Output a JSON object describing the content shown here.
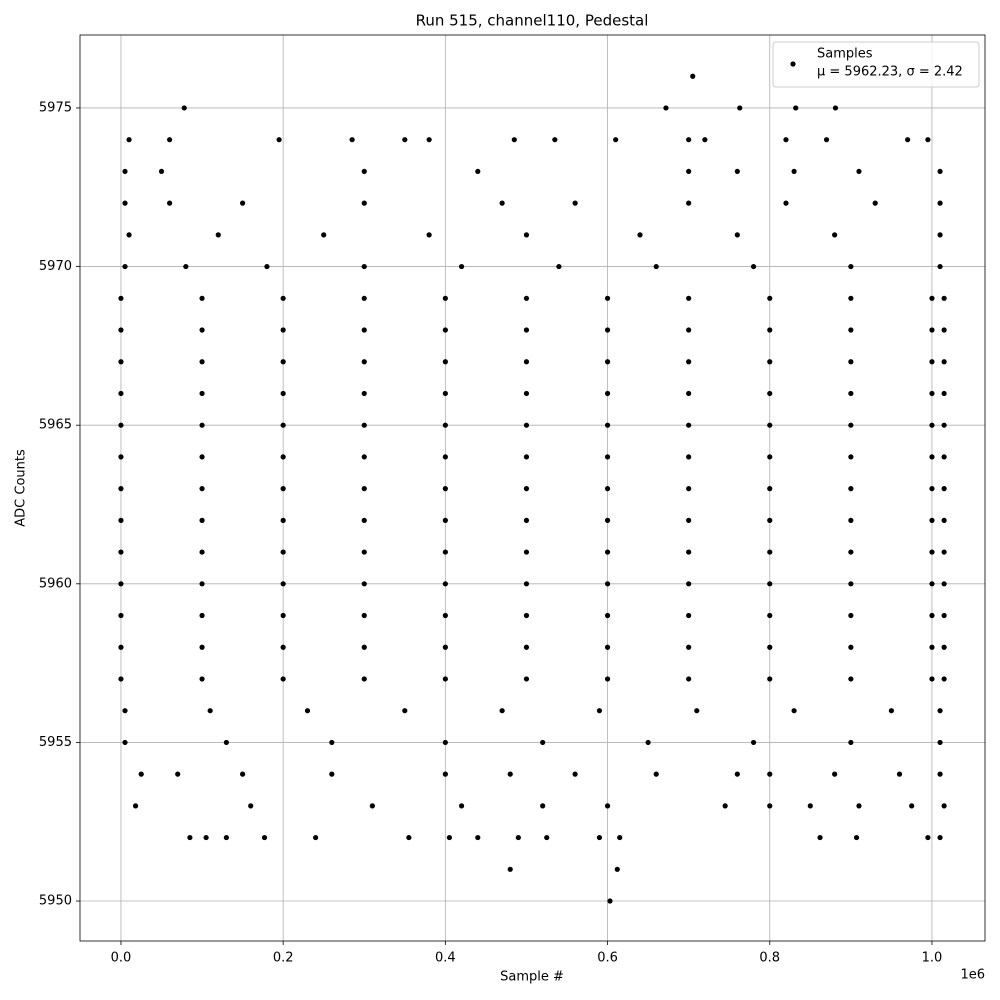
{
  "chart_data": {
    "type": "scatter",
    "title": "Run 515, channel110, Pedestal",
    "x_label": "Sample #",
    "y_label": "ADC Counts",
    "x_offset_label": "1e6",
    "xlim": [
      -50500,
      1065400
    ],
    "ylim": [
      5948.74,
      5977.3
    ],
    "xticks": [
      {
        "value": 0,
        "label": "0.0"
      },
      {
        "value": 200000,
        "label": "0.2"
      },
      {
        "value": 400000,
        "label": "0.4"
      },
      {
        "value": 600000,
        "label": "0.6"
      },
      {
        "value": 800000,
        "label": "0.8"
      },
      {
        "value": 1000000,
        "label": "1.0"
      }
    ],
    "yticks": [
      5950,
      5955,
      5960,
      5965,
      5970,
      5975
    ],
    "grid": true,
    "legend": "upper right",
    "stats_label": "μ = 5962.23, σ = 2.42",
    "series": [
      {
        "name": "Samples",
        "color": "#000000",
        "x": [
          0,
          100000,
          200000,
          300000,
          400000,
          500000,
          600000,
          700000,
          800000,
          900000,
          1000000,
          1015000,
          0,
          100000,
          200000,
          300000,
          400000,
          500000,
          600000,
          700000,
          800000,
          900000,
          1000000,
          1015000,
          0,
          100000,
          200000,
          300000,
          400000,
          500000,
          600000,
          700000,
          800000,
          900000,
          1000000,
          1015000,
          0,
          100000,
          200000,
          300000,
          400000,
          500000,
          600000,
          700000,
          800000,
          900000,
          1000000,
          1015000,
          0,
          100000,
          200000,
          300000,
          400000,
          500000,
          600000,
          700000,
          800000,
          900000,
          1000000,
          1015000,
          0,
          100000,
          200000,
          300000,
          400000,
          500000,
          600000,
          700000,
          800000,
          900000,
          1000000,
          1015000,
          0,
          100000,
          200000,
          300000,
          400000,
          500000,
          600000,
          700000,
          800000,
          900000,
          1000000,
          1015000,
          0,
          100000,
          200000,
          300000,
          400000,
          500000,
          600000,
          700000,
          800000,
          900000,
          1000000,
          1015000,
          0,
          100000,
          200000,
          300000,
          400000,
          500000,
          600000,
          700000,
          800000,
          900000,
          1000000,
          1015000,
          0,
          100000,
          200000,
          300000,
          400000,
          500000,
          600000,
          700000,
          800000,
          900000,
          1000000,
          1015000,
          0,
          100000,
          200000,
          300000,
          400000,
          500000,
          600000,
          700000,
          800000,
          900000,
          1000000,
          1015000,
          0,
          100000,
          200000,
          300000,
          400000,
          500000,
          600000,
          700000,
          800000,
          900000,
          1000000,
          1015000,
          0,
          100000,
          200000,
          300000,
          400000,
          500000,
          600000,
          700000,
          800000,
          900000,
          1000000,
          1015000,
          5000,
          80000,
          180000,
          300000,
          420000,
          540000,
          660000,
          780000,
          900000,
          1010000,
          10000,
          120000,
          250000,
          380000,
          500000,
          640000,
          760000,
          880000,
          1010000,
          5000,
          60000,
          150000,
          300000,
          470000,
          560000,
          700000,
          820000,
          930000,
          1010000,
          5000,
          50000,
          300000,
          440000,
          700000,
          760000,
          830000,
          910000,
          1010000,
          10000,
          60000,
          195000,
          285000,
          350000,
          380000,
          485000,
          535000,
          610000,
          700000,
          720000,
          820000,
          870000,
          970000,
          995000,
          78000,
          672000,
          763000,
          832000,
          881000,
          705000,
          5000,
          110000,
          230000,
          350000,
          470000,
          590000,
          710000,
          830000,
          950000,
          1010000,
          5000,
          130000,
          260000,
          400000,
          520000,
          650000,
          780000,
          900000,
          1010000,
          25000,
          70000,
          150000,
          260000,
          400000,
          480000,
          560000,
          660000,
          760000,
          800000,
          880000,
          960000,
          1010000,
          18000,
          160000,
          310000,
          420000,
          520000,
          600000,
          745000,
          800000,
          850000,
          910000,
          975000,
          1015000,
          85000,
          105000,
          130000,
          177000,
          240000,
          355000,
          405000,
          440000,
          490000,
          525000,
          590000,
          615000,
          862000,
          907000,
          995000,
          1010000,
          480000,
          612000,
          603000
        ],
        "y": [
          5957,
          5957,
          5957,
          5957,
          5957,
          5957,
          5957,
          5957,
          5957,
          5957,
          5957,
          5957,
          5958,
          5958,
          5958,
          5958,
          5958,
          5958,
          5958,
          5958,
          5958,
          5958,
          5958,
          5958,
          5959,
          5959,
          5959,
          5959,
          5959,
          5959,
          5959,
          5959,
          5959,
          5959,
          5959,
          5959,
          5960,
          5960,
          5960,
          5960,
          5960,
          5960,
          5960,
          5960,
          5960,
          5960,
          5960,
          5960,
          5961,
          5961,
          5961,
          5961,
          5961,
          5961,
          5961,
          5961,
          5961,
          5961,
          5961,
          5961,
          5962,
          5962,
          5962,
          5962,
          5962,
          5962,
          5962,
          5962,
          5962,
          5962,
          5962,
          5962,
          5963,
          5963,
          5963,
          5963,
          5963,
          5963,
          5963,
          5963,
          5963,
          5963,
          5963,
          5963,
          5964,
          5964,
          5964,
          5964,
          5964,
          5964,
          5964,
          5964,
          5964,
          5964,
          5964,
          5964,
          5965,
          5965,
          5965,
          5965,
          5965,
          5965,
          5965,
          5965,
          5965,
          5965,
          5965,
          5965,
          5966,
          5966,
          5966,
          5966,
          5966,
          5966,
          5966,
          5966,
          5966,
          5966,
          5966,
          5966,
          5967,
          5967,
          5967,
          5967,
          5967,
          5967,
          5967,
          5967,
          5967,
          5967,
          5967,
          5967,
          5968,
          5968,
          5968,
          5968,
          5968,
          5968,
          5968,
          5968,
          5968,
          5968,
          5968,
          5968,
          5969,
          5969,
          5969,
          5969,
          5969,
          5969,
          5969,
          5969,
          5969,
          5969,
          5969,
          5969,
          5970,
          5970,
          5970,
          5970,
          5970,
          5970,
          5970,
          5970,
          5970,
          5970,
          5971,
          5971,
          5971,
          5971,
          5971,
          5971,
          5971,
          5971,
          5971,
          5972,
          5972,
          5972,
          5972,
          5972,
          5972,
          5972,
          5972,
          5972,
          5972,
          5973,
          5973,
          5973,
          5973,
          5973,
          5973,
          5973,
          5973,
          5973,
          5974,
          5974,
          5974,
          5974,
          5974,
          5974,
          5974,
          5974,
          5974,
          5974,
          5974,
          5974,
          5974,
          5974,
          5974,
          5975,
          5975,
          5975,
          5975,
          5975,
          5976,
          5956,
          5956,
          5956,
          5956,
          5956,
          5956,
          5956,
          5956,
          5956,
          5956,
          5955,
          5955,
          5955,
          5955,
          5955,
          5955,
          5955,
          5955,
          5955,
          5954,
          5954,
          5954,
          5954,
          5954,
          5954,
          5954,
          5954,
          5954,
          5954,
          5954,
          5954,
          5954,
          5953,
          5953,
          5953,
          5953,
          5953,
          5953,
          5953,
          5953,
          5953,
          5953,
          5953,
          5953,
          5952,
          5952,
          5952,
          5952,
          5952,
          5952,
          5952,
          5952,
          5952,
          5952,
          5952,
          5952,
          5952,
          5952,
          5952,
          5952,
          5951,
          5951,
          5950
        ]
      }
    ]
  }
}
